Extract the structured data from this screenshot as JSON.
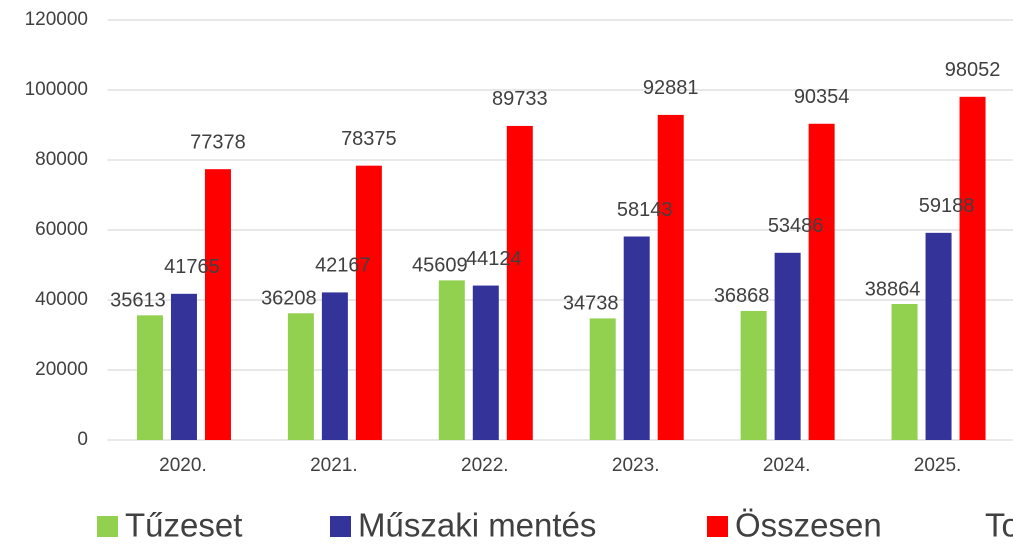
{
  "chart_data": {
    "type": "bar",
    "categories": [
      "2020.",
      "2021.",
      "2022.",
      "2023.",
      "2024.",
      "2025."
    ],
    "series": [
      {
        "name": "Tűzeset",
        "color": "#92d050",
        "values": [
          35613,
          36208,
          45609,
          34738,
          36868,
          38864
        ]
      },
      {
        "name": "Műszaki mentés",
        "color": "#333399",
        "values": [
          41765,
          42167,
          44124,
          58143,
          53486,
          59188
        ]
      },
      {
        "name": "Összesen",
        "color": "#ff0000",
        "values": [
          77378,
          78375,
          89733,
          92881,
          90354,
          98052
        ]
      }
    ],
    "ylim": [
      0,
      120000
    ],
    "yticks": [
      0,
      20000,
      40000,
      60000,
      80000,
      100000,
      120000
    ],
    "grid": true,
    "legend": "bottom",
    "annotation": "To"
  }
}
